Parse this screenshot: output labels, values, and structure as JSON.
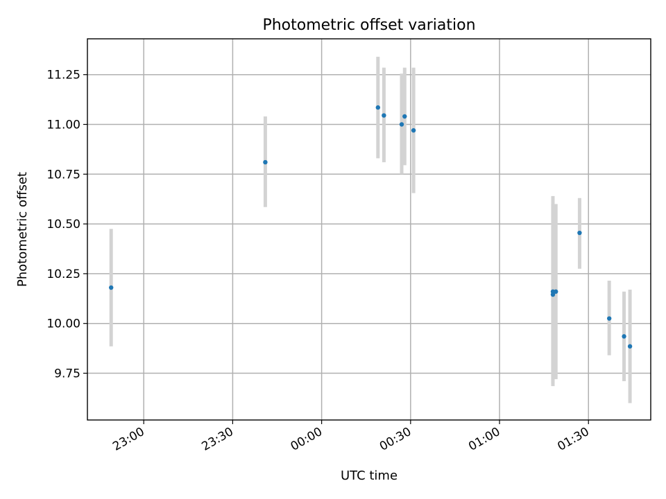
{
  "chart_data": {
    "type": "scatter",
    "title": "Photometric offset variation",
    "xlabel": "UTC time",
    "ylabel": "Photometric offset",
    "grid": true,
    "xlim": [
      "22:41",
      "01:51"
    ],
    "ylim": [
      9.515,
      11.43
    ],
    "x_ticks": [
      "23:00",
      "23:30",
      "00:00",
      "00:30",
      "01:00",
      "01:30"
    ],
    "y_ticks": [
      "9.75",
      "10.00",
      "10.25",
      "10.50",
      "10.75",
      "11.00",
      "11.25"
    ],
    "colors": {
      "points": "#1f77b4",
      "errorbars": "#d3d3d3",
      "grid": "#b0b0b0"
    },
    "series": [
      {
        "points": [
          {
            "x": "22:49",
            "y": 10.18,
            "yerr_low": 9.885,
            "yerr_high": 10.475
          },
          {
            "x": "23:41",
            "y": 10.81,
            "yerr_low": 10.585,
            "yerr_high": 11.04
          },
          {
            "x": "00:19",
            "y": 11.085,
            "yerr_low": 10.83,
            "yerr_high": 11.34
          },
          {
            "x": "00:21",
            "y": 11.045,
            "yerr_low": 10.81,
            "yerr_high": 11.285
          },
          {
            "x": "00:27",
            "y": 11.0,
            "yerr_low": 10.75,
            "yerr_high": 11.255
          },
          {
            "x": "00:28",
            "y": 11.04,
            "yerr_low": 10.795,
            "yerr_high": 11.285
          },
          {
            "x": "00:31",
            "y": 10.97,
            "yerr_low": 10.655,
            "yerr_high": 11.285
          },
          {
            "x": "01:18",
            "y": 10.16,
            "yerr_low": 9.685,
            "yerr_high": 10.64
          },
          {
            "x": "01:18",
            "y": 10.145,
            "yerr_low": 9.7,
            "yerr_high": 10.6
          },
          {
            "x": "01:19",
            "y": 10.16,
            "yerr_low": 9.72,
            "yerr_high": 10.6
          },
          {
            "x": "01:27",
            "y": 10.455,
            "yerr_low": 10.275,
            "yerr_high": 10.63
          },
          {
            "x": "01:37",
            "y": 10.025,
            "yerr_low": 9.84,
            "yerr_high": 10.215
          },
          {
            "x": "01:42",
            "y": 9.935,
            "yerr_low": 9.71,
            "yerr_high": 10.16
          },
          {
            "x": "01:44",
            "y": 9.885,
            "yerr_low": 9.6,
            "yerr_high": 10.17
          }
        ]
      }
    ]
  }
}
